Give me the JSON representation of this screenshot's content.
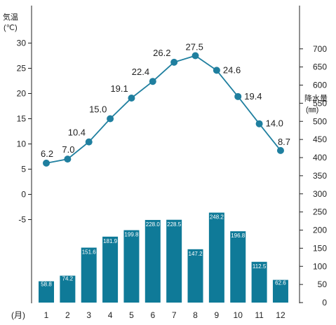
{
  "chart_data": {
    "type": "bar+line",
    "categories": [
      "1",
      "2",
      "3",
      "4",
      "5",
      "6",
      "7",
      "8",
      "9",
      "10",
      "11",
      "12"
    ],
    "x_unit": "(月)",
    "temperature": {
      "axis_label": [
        "気温",
        "(℃)"
      ],
      "ticks": [
        "30",
        "25",
        "20",
        "15",
        "10",
        "5",
        "0",
        "-5"
      ],
      "tick_values": [
        30,
        25,
        20,
        15,
        10,
        5,
        0,
        -5
      ],
      "ylim": [
        -5,
        30
      ],
      "values": [
        6.2,
        7.0,
        10.4,
        15.0,
        19.1,
        22.4,
        26.2,
        27.5,
        24.6,
        19.4,
        14.0,
        8.7
      ],
      "labels": [
        "6.2",
        "7.0",
        "10.4",
        "15.0",
        "19.1",
        "22.4",
        "26.2",
        "27.5",
        "24.6",
        "19.4",
        "14.0",
        "8.7"
      ],
      "color": "#1f7f9f"
    },
    "precipitation": {
      "axis_label": [
        "降水量",
        "(㎜)"
      ],
      "ticks": [
        "700",
        "650",
        "600",
        "550",
        "500",
        "450",
        "400",
        "350",
        "300",
        "250",
        "200",
        "150",
        "100",
        "50",
        "0"
      ],
      "tick_values": [
        700,
        650,
        600,
        550,
        500,
        450,
        400,
        350,
        300,
        250,
        200,
        150,
        100,
        50,
        0
      ],
      "ylim": [
        0,
        700
      ],
      "values": [
        58.8,
        74.2,
        151.6,
        181.9,
        199.8,
        228.0,
        228.5,
        147.2,
        248.2,
        196.8,
        112.5,
        62.6
      ],
      "labels": [
        "58.8",
        "74.2",
        "151.6",
        "181.9",
        "199.8",
        "228.0",
        "228.5",
        "147.2",
        "248.2",
        "196.8",
        "112.5",
        "62.6"
      ],
      "color": "#0f7a98"
    },
    "grid": false
  }
}
